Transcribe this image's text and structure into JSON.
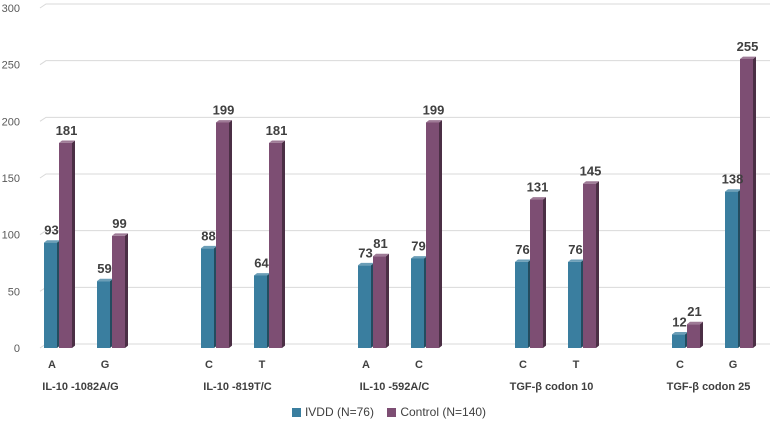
{
  "chart_data": {
    "type": "bar",
    "style": "3d-clustered-column",
    "ylim": [
      0,
      300
    ],
    "yticks": [
      0,
      50,
      100,
      150,
      200,
      250,
      300
    ],
    "grid": true,
    "legend_position": "bottom",
    "groups": [
      {
        "label": "IL-10 -1082A/G",
        "categories": [
          "A",
          "G"
        ]
      },
      {
        "label": "IL-10 -819T/C",
        "categories": [
          "C",
          "T"
        ]
      },
      {
        "label": "IL-10 -592A/C",
        "categories": [
          "A",
          "C"
        ]
      },
      {
        "label": "TGF-β codon 10",
        "categories": [
          "C",
          "T"
        ]
      },
      {
        "label": "TGF-β codon 25",
        "categories": [
          "C",
          "G"
        ]
      }
    ],
    "series": [
      {
        "name": "IVDD (N=76)",
        "color": "#3a7e9f",
        "values": [
          93,
          59,
          88,
          64,
          73,
          79,
          76,
          76,
          12,
          138
        ]
      },
      {
        "name": "Control (N=140)",
        "color": "#7d4e73",
        "values": [
          181,
          99,
          199,
          181,
          81,
          199,
          131,
          145,
          21,
          255
        ]
      }
    ]
  }
}
